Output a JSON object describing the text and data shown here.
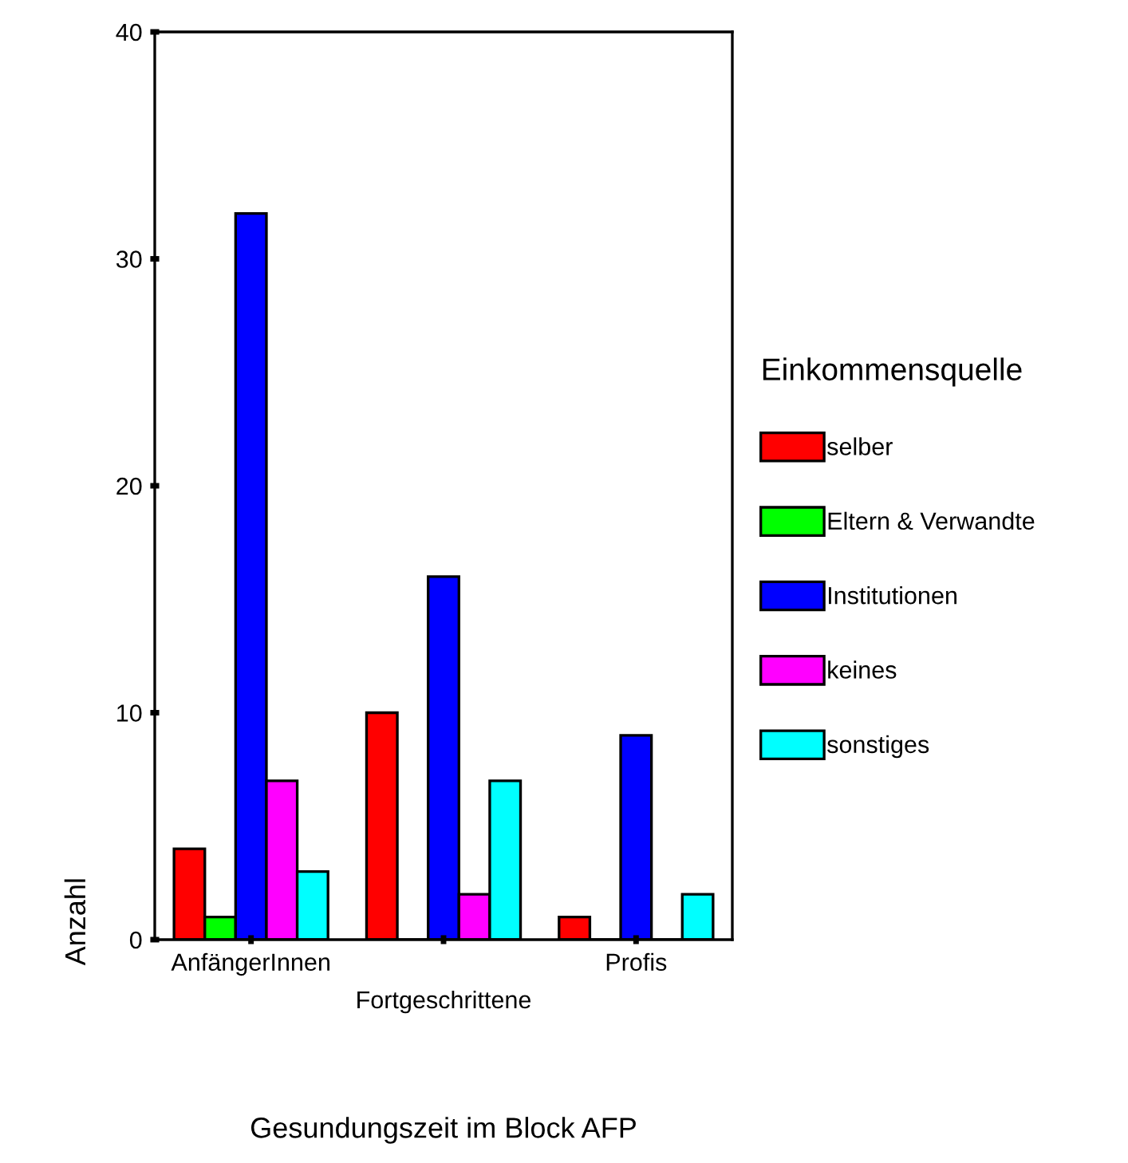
{
  "chart_data": {
    "type": "bar",
    "xlabel": "Gesundungszeit im Block AFP",
    "ylabel": "Anzahl",
    "legend_title": "Einkommensquelle",
    "legend": "right",
    "grid": false,
    "categories": [
      "AnfängerInnen",
      "Fortgeschrittene",
      "Profis"
    ],
    "ylim": [
      0,
      40
    ],
    "yticks": [
      0,
      10,
      20,
      30,
      40
    ],
    "series": [
      {
        "name": "selber",
        "color": "#ff0000",
        "values": [
          4,
          10,
          1
        ]
      },
      {
        "name": "Eltern & Verwandte",
        "color": "#00ff00",
        "values": [
          1,
          0,
          0
        ]
      },
      {
        "name": "Institutionen",
        "color": "#0000ff",
        "values": [
          32,
          16,
          9
        ]
      },
      {
        "name": "keines",
        "color": "#ff00ff",
        "values": [
          7,
          2,
          0
        ]
      },
      {
        "name": "sonstiges",
        "color": "#00ffff",
        "values": [
          3,
          7,
          2
        ]
      }
    ]
  }
}
